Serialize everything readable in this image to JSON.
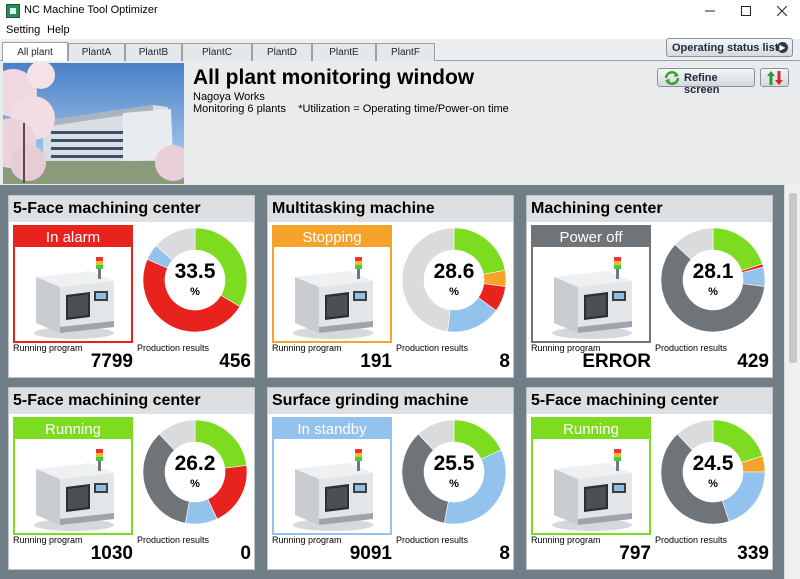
{
  "window": {
    "title": "NC Machine Tool Optimizer"
  },
  "menu": {
    "setting": "Setting",
    "help": "Help"
  },
  "tabs": [
    {
      "label": "All plant",
      "active": true
    },
    {
      "label": "PlantA"
    },
    {
      "label": "PlantB"
    },
    {
      "label": "PlantC"
    },
    {
      "label": "PlantD"
    },
    {
      "label": "PlantE"
    },
    {
      "label": "PlantF"
    }
  ],
  "buttons": {
    "operating_status_list": "Operating status list",
    "refine_screen": "Refine screen"
  },
  "header": {
    "title": "All plant monitoring window",
    "site": "Nagoya Works",
    "monitoring": "Monitoring 6 plants",
    "utilization_note": "*Utilization = Operating time/Power-on time"
  },
  "labels": {
    "running_program": "Running program",
    "production_results": "Production results",
    "percent": "%"
  },
  "colors": {
    "green": "#7ddc1f",
    "red": "#e8221c",
    "orange": "#f5a32a",
    "blue": "#93c2ec",
    "gray": "#6f7478",
    "light": "#d9dbdc"
  },
  "machines": [
    {
      "name": "5-Face machining  center",
      "status": "In alarm",
      "status_color": "#e8221c",
      "border_color": "#e8221c",
      "utilization": "33.5",
      "running_program": "7799",
      "production_results": "456",
      "segments": [
        {
          "color": "green",
          "fraction": 0.335
        },
        {
          "color": "red",
          "fraction": 0.48
        },
        {
          "color": "blue",
          "fraction": 0.05
        },
        {
          "color": "light",
          "fraction": 0.135
        }
      ]
    },
    {
      "name": "Multitasking machine",
      "status": "Stopping",
      "status_color": "#f5a32a",
      "border_color": "#f5a32a",
      "utilization": "28.6",
      "running_program": "191",
      "production_results": "8",
      "segments": [
        {
          "color": "green",
          "fraction": 0.22
        },
        {
          "color": "orange",
          "fraction": 0.05
        },
        {
          "color": "red",
          "fraction": 0.08
        },
        {
          "color": "blue",
          "fraction": 0.17
        },
        {
          "color": "light",
          "fraction": 0.48
        }
      ]
    },
    {
      "name": "Machining  center",
      "status": "Power off",
      "status_color": "#6f7478",
      "border_color": "#6f7478",
      "utilization": "28.1",
      "running_program": "ERROR",
      "production_results": "429",
      "segments": [
        {
          "color": "green",
          "fraction": 0.2
        },
        {
          "color": "red",
          "fraction": 0.01
        },
        {
          "color": "blue",
          "fraction": 0.06
        },
        {
          "color": "gray",
          "fraction": 0.6
        },
        {
          "color": "light",
          "fraction": 0.13
        }
      ]
    },
    {
      "name": "5-Face machining  center",
      "status": "Running",
      "status_color": "#7ddc1f",
      "border_color": "#7ddc1f",
      "utilization": "26.2",
      "running_program": "1030",
      "production_results": "0",
      "segments": [
        {
          "color": "green",
          "fraction": 0.23
        },
        {
          "color": "red",
          "fraction": 0.2
        },
        {
          "color": "blue",
          "fraction": 0.1
        },
        {
          "color": "gray",
          "fraction": 0.35
        },
        {
          "color": "light",
          "fraction": 0.12
        }
      ]
    },
    {
      "name": "Surface grinding machine",
      "status": "In standby",
      "status_color": "#93c2ec",
      "border_color": "#93c2ec",
      "utilization": "25.5",
      "running_program": "9091",
      "production_results": "8",
      "segments": [
        {
          "color": "green",
          "fraction": 0.18
        },
        {
          "color": "blue",
          "fraction": 0.35
        },
        {
          "color": "gray",
          "fraction": 0.35
        },
        {
          "color": "light",
          "fraction": 0.12
        }
      ]
    },
    {
      "name": "5-Face machining  center",
      "status": "Running",
      "status_color": "#7ddc1f",
      "border_color": "#7ddc1f",
      "utilization": "24.5",
      "running_program": "797",
      "production_results": "339",
      "segments": [
        {
          "color": "green",
          "fraction": 0.2
        },
        {
          "color": "orange",
          "fraction": 0.05
        },
        {
          "color": "blue",
          "fraction": 0.2
        },
        {
          "color": "gray",
          "fraction": 0.43
        },
        {
          "color": "light",
          "fraction": 0.12
        }
      ]
    }
  ]
}
